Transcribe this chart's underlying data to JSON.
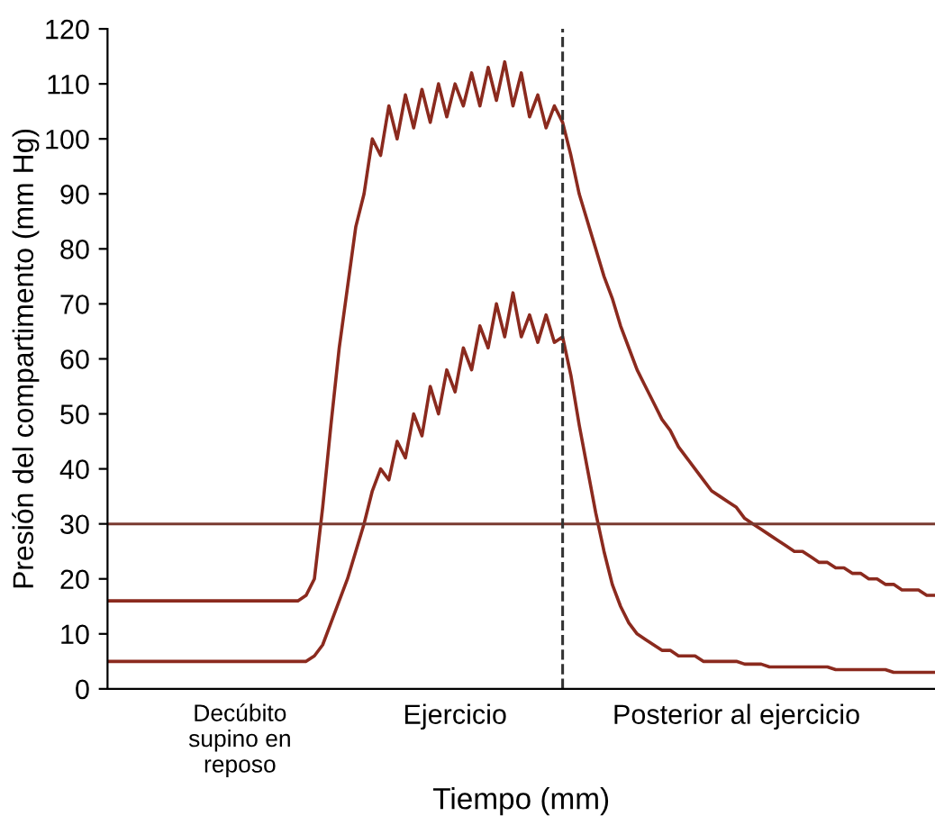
{
  "chart_data": {
    "type": "line",
    "xlabel": "Tiempo (mm)",
    "ylabel": "Presión del compartimento (mm Hg)",
    "categories": [
      null,
      null,
      null,
      null,
      null,
      null,
      null,
      null,
      null,
      null,
      null,
      null,
      null,
      null,
      null,
      null,
      "Decúbito\nsupino en\nreposo",
      null,
      null,
      null,
      null,
      null,
      null,
      null,
      null,
      null,
      null,
      null,
      null,
      null,
      null,
      null,
      null,
      null,
      null,
      null,
      null,
      null,
      null,
      null,
      null,
      null,
      "Ejercicio",
      null,
      null,
      null,
      null,
      null,
      null,
      null,
      null,
      null,
      null,
      null,
      null,
      null,
      null,
      null,
      null,
      null,
      null,
      null,
      null,
      null,
      null,
      null,
      null,
      null,
      null,
      null,
      null,
      null,
      null,
      null,
      null,
      null,
      "Posterior al ejercicio",
      null,
      null,
      null,
      null,
      null,
      null,
      null,
      null,
      null,
      null,
      null,
      null,
      null,
      null,
      null,
      null,
      null,
      null,
      null,
      null,
      null,
      null,
      null,
      null
    ],
    "ylim": [
      0,
      120
    ],
    "yticks": [
      0,
      10,
      20,
      30,
      40,
      50,
      60,
      70,
      80,
      90,
      100,
      110,
      120
    ],
    "grid": false,
    "legend": false,
    "marker": "none",
    "line_style": "solid",
    "series": [
      {
        "color": "#8b2a1e",
        "values": [
          16,
          16,
          16,
          16,
          16,
          16,
          16,
          16,
          16,
          16,
          16,
          16,
          16,
          16,
          16,
          16,
          16,
          16,
          16,
          16,
          16,
          16,
          16,
          16,
          17,
          20,
          33,
          48,
          62,
          73,
          84,
          90,
          100,
          97,
          106,
          100,
          108,
          102,
          109,
          103,
          110,
          104,
          110,
          106,
          112,
          106,
          113,
          107,
          114,
          106,
          112,
          104,
          108,
          102,
          106,
          103,
          97,
          90,
          85,
          80,
          75,
          71,
          66,
          62,
          58,
          55,
          52,
          49,
          47,
          44,
          42,
          40,
          38,
          36,
          35,
          34,
          33,
          31,
          30,
          29,
          28,
          27,
          26,
          25,
          25,
          24,
          23,
          23,
          22,
          22,
          21,
          21,
          20,
          20,
          19,
          19,
          18,
          18,
          18,
          17,
          17
        ]
      },
      {
        "color": "#8b2a1e",
        "values": [
          5,
          5,
          5,
          5,
          5,
          5,
          5,
          5,
          5,
          5,
          5,
          5,
          5,
          5,
          5,
          5,
          5,
          5,
          5,
          5,
          5,
          5,
          5,
          5,
          5,
          6,
          8,
          12,
          16,
          20,
          25,
          30,
          36,
          40,
          38,
          45,
          42,
          50,
          46,
          55,
          50,
          58,
          54,
          62,
          58,
          66,
          62,
          70,
          64,
          72,
          64,
          68,
          63,
          68,
          63,
          64,
          57,
          48,
          40,
          32,
          25,
          19,
          15,
          12,
          10,
          9,
          8,
          7,
          7,
          6,
          6,
          6,
          5,
          5,
          5,
          5,
          5,
          4.5,
          4.5,
          4.5,
          4,
          4,
          4,
          4,
          4,
          4,
          4,
          4,
          3.5,
          3.5,
          3.5,
          3.5,
          3.5,
          3.5,
          3.5,
          3,
          3,
          3,
          3,
          3,
          3
        ]
      }
    ],
    "ref_lines": [
      {
        "axis": "y",
        "value": 30,
        "color": "#7a3a30",
        "line_style": "solid"
      }
    ]
  }
}
